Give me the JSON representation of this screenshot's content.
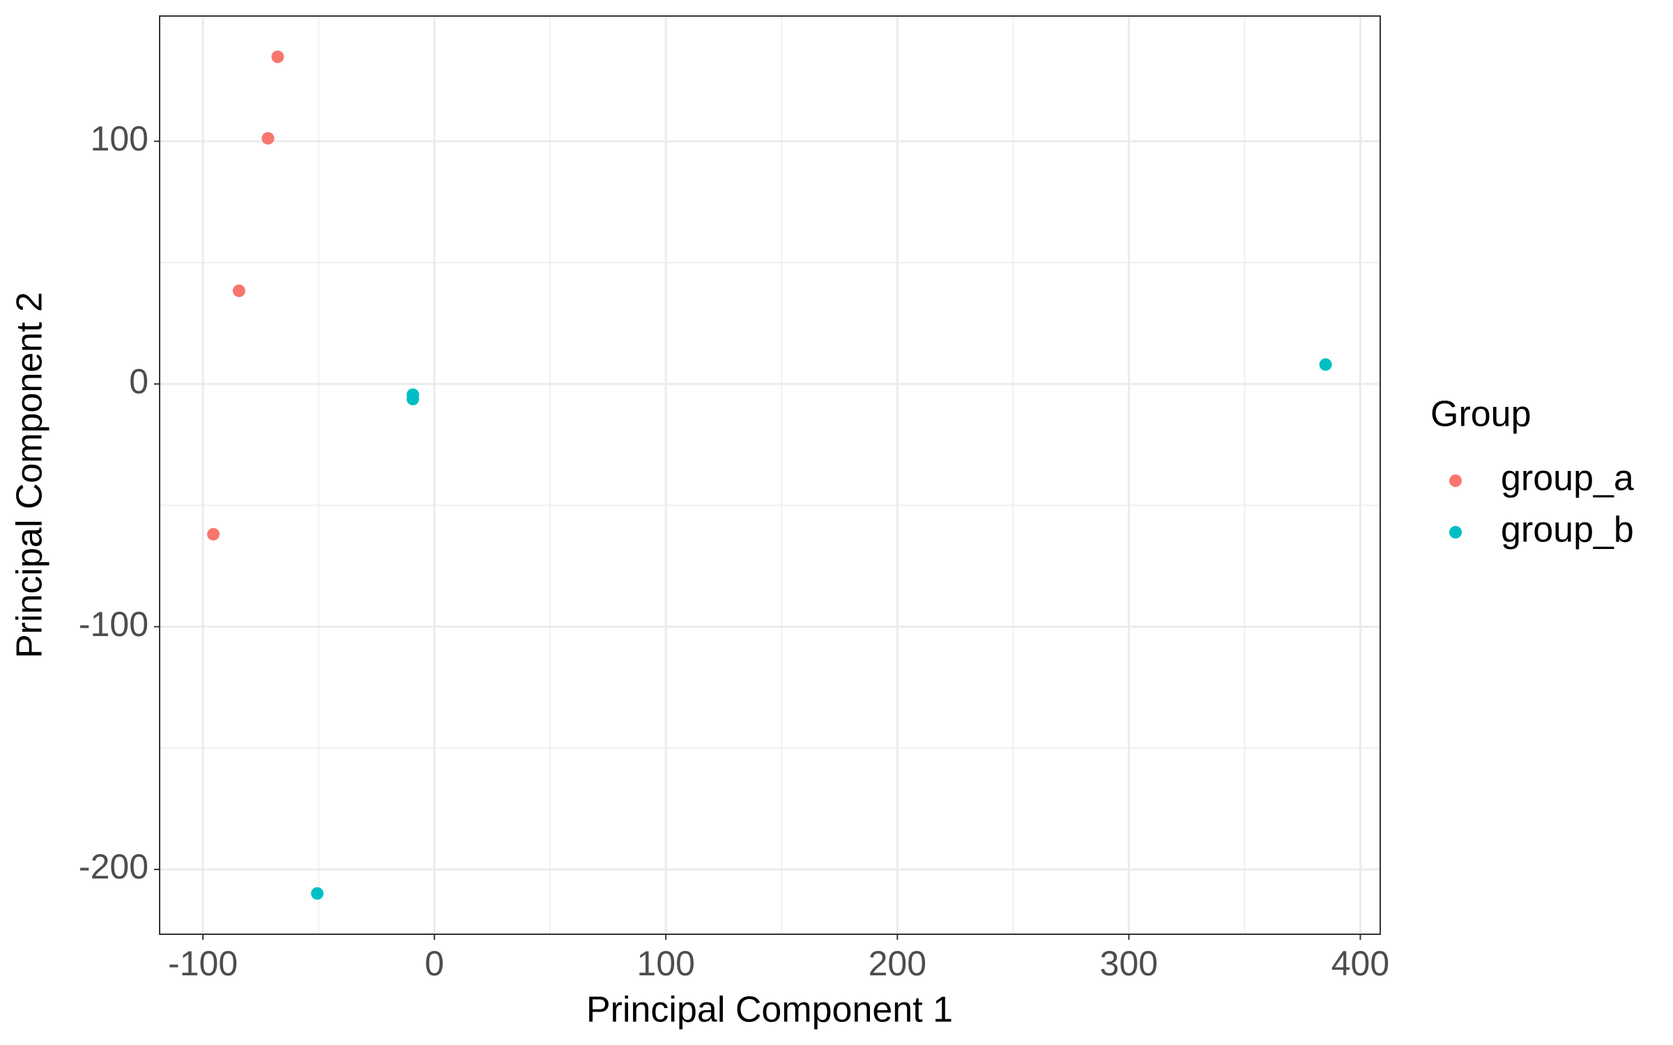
{
  "chart_data": {
    "type": "scatter",
    "x_label": "Principal Component 1",
    "y_label": "Principal Component 2",
    "legend_title": "Group",
    "legend_position": "right",
    "grid": true,
    "xlim": [
      -118.7,
      408.6
    ],
    "ylim": [
      -226.7,
      151.6
    ],
    "xticks": [
      -100,
      0,
      100,
      200,
      300,
      400
    ],
    "yticks": [
      -200,
      -100,
      0,
      100
    ],
    "series": [
      {
        "name": "group_a",
        "color": "#f8766d",
        "x": [
          -67.7,
          -71.9,
          -84.4,
          -95.5
        ],
        "y": [
          134.8,
          101.2,
          38.4,
          -61.9
        ]
      },
      {
        "name": "group_b",
        "color": "#00bfc4",
        "x": [
          -9.3,
          -9.3,
          -50.6,
          385.0
        ],
        "y": [
          -4.4,
          -6.2,
          -209.9,
          8.0
        ]
      }
    ]
  }
}
